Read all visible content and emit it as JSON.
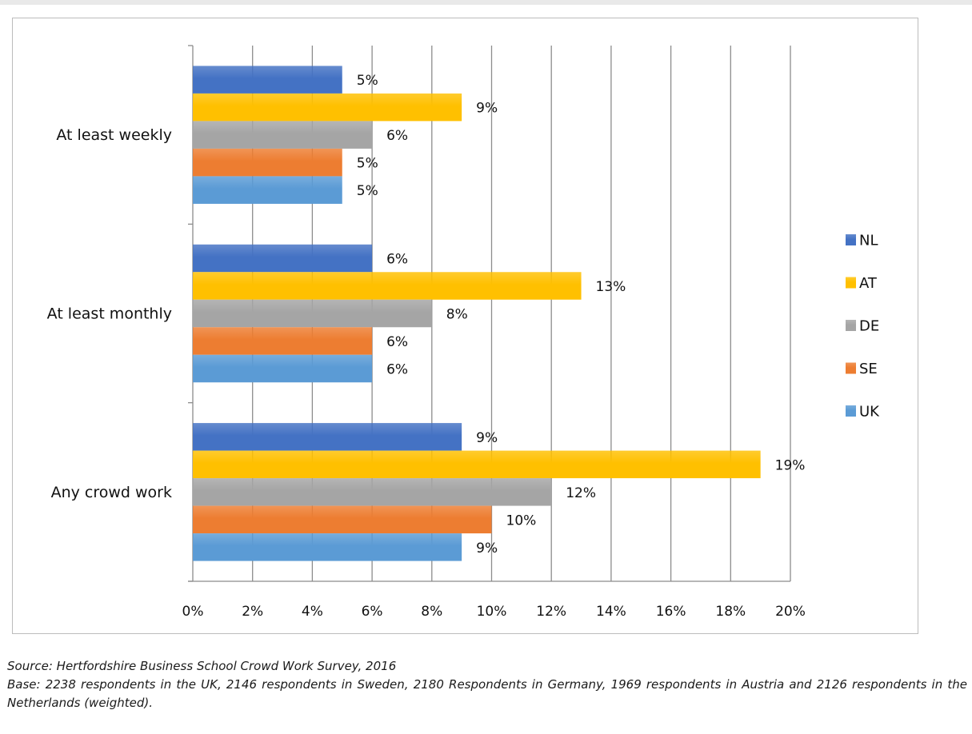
{
  "chart_data": {
    "type": "bar",
    "orientation": "horizontal",
    "categories": [
      "At least weekly",
      "At least monthly",
      "Any crowd work"
    ],
    "series": [
      {
        "name": "NL",
        "values": [
          5,
          6,
          9
        ],
        "color": "#4472c4"
      },
      {
        "name": "AT",
        "values": [
          9,
          13,
          19
        ],
        "color": "#ffc000"
      },
      {
        "name": "DE",
        "values": [
          6,
          8,
          12
        ],
        "color": "#a5a5a5"
      },
      {
        "name": "SE",
        "values": [
          5,
          6,
          10
        ],
        "color": "#ed7d31"
      },
      {
        "name": "UK",
        "values": [
          5,
          6,
          9
        ],
        "color": "#5b9bd5"
      }
    ],
    "data_labels": [
      [
        "5%",
        "9%",
        "6%",
        "5%",
        "5%"
      ],
      [
        "6%",
        "13%",
        "8%",
        "6%",
        "6%"
      ],
      [
        "9%",
        "19%",
        "12%",
        "10%",
        "9%"
      ]
    ],
    "x_ticks": [
      "0%",
      "2%",
      "4%",
      "6%",
      "8%",
      "10%",
      "12%",
      "14%",
      "16%",
      "18%",
      "20%"
    ],
    "xlim": [
      0,
      20
    ],
    "unit": "%",
    "grid": "vertical",
    "legend_position": "right",
    "title": "",
    "xlabel": "",
    "ylabel": ""
  },
  "notes": {
    "source": "Source: Hertfordshire Business School Crowd Work Survey, 2016",
    "base": "Base: 2238 respondents in the UK, 2146 respondents in Sweden, 2180 Respondents in Germany, 1969 respondents in Austria and 2126 respondents in the Netherlands (weighted)."
  }
}
